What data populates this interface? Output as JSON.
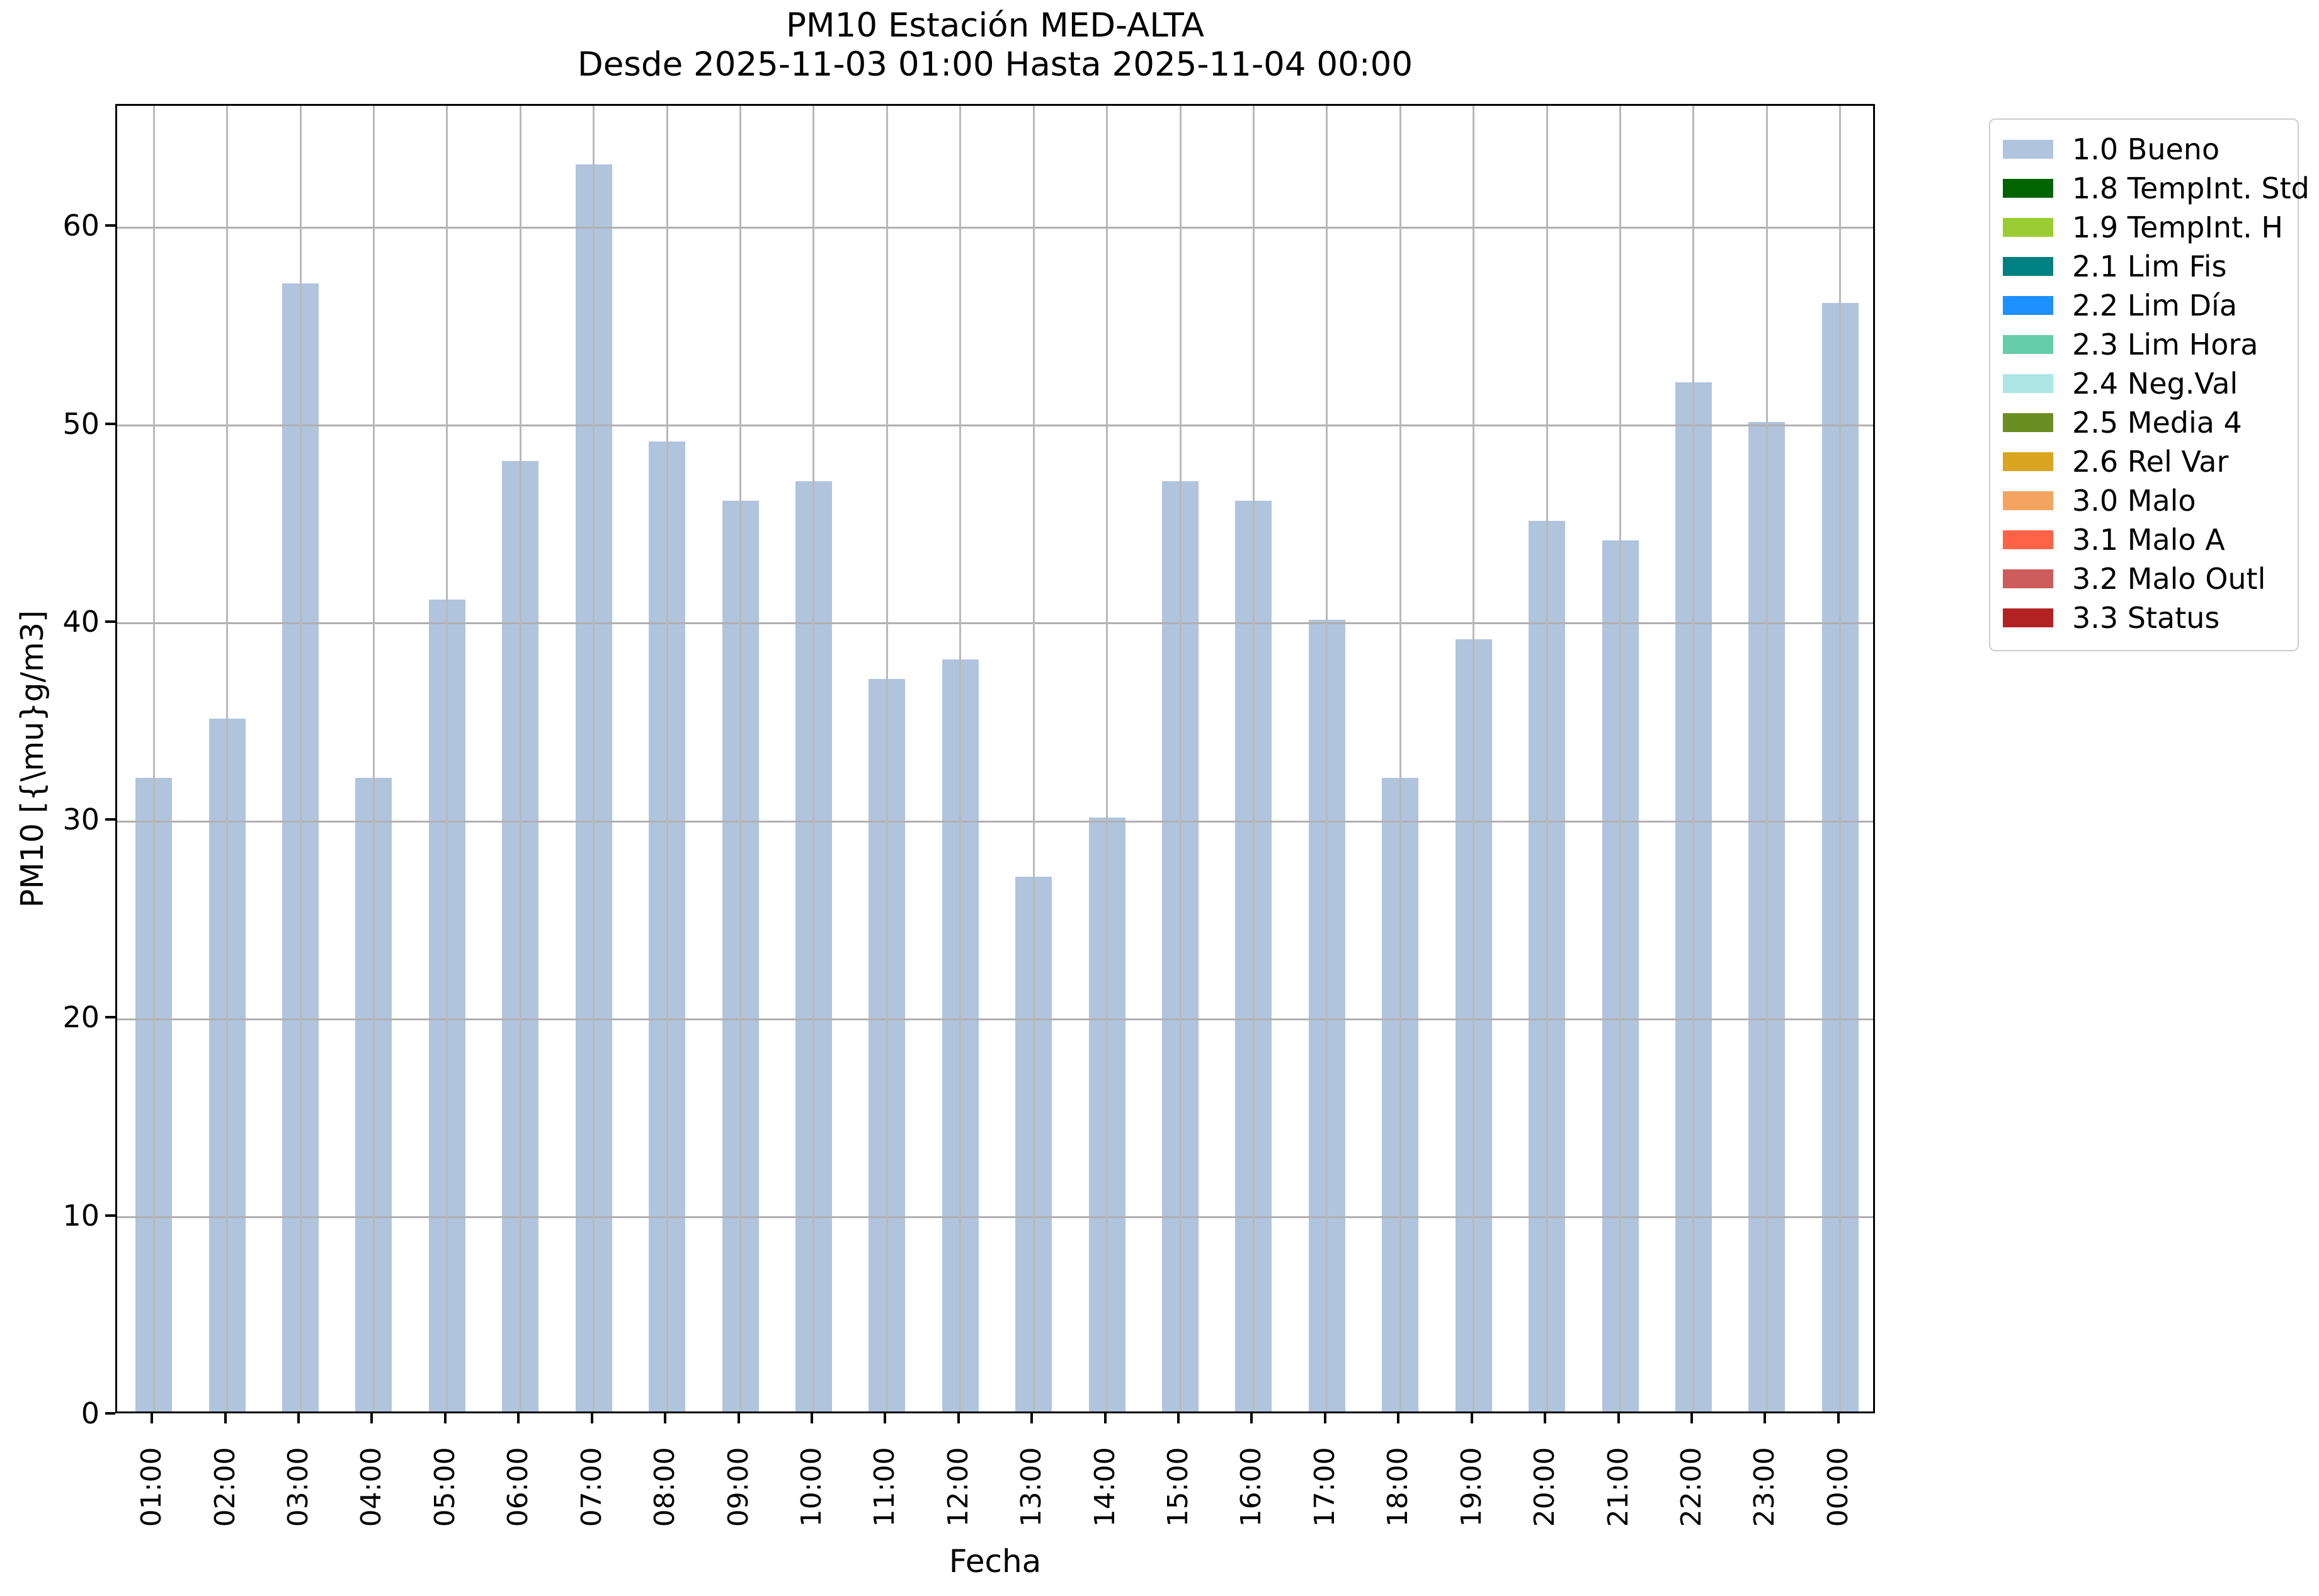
{
  "chart_data": {
    "type": "bar",
    "title": "PM10 Estación MED-ALTA",
    "subtitle": "Desde 2025-11-03 01:00 Hasta 2025-11-04 00:00",
    "xlabel": "Fecha",
    "ylabel": "PM10 [{\\mu}g/m3]",
    "categories": [
      "01:00",
      "02:00",
      "03:00",
      "04:00",
      "05:00",
      "06:00",
      "07:00",
      "08:00",
      "09:00",
      "10:00",
      "11:00",
      "12:00",
      "13:00",
      "14:00",
      "15:00",
      "16:00",
      "17:00",
      "18:00",
      "19:00",
      "20:00",
      "21:00",
      "22:00",
      "23:00",
      "00:00"
    ],
    "values": [
      32,
      35,
      57,
      32,
      41,
      48,
      63,
      49,
      46,
      47,
      37,
      38,
      27,
      30,
      47,
      46,
      40,
      32,
      39,
      45,
      44,
      52,
      50,
      56
    ],
    "bar_color": "#b0c4de",
    "yticks": [
      0,
      10,
      20,
      30,
      40,
      50,
      60
    ],
    "ylim": [
      0,
      66.15
    ],
    "grid": true,
    "legend_position": "outside upper right",
    "legend": [
      {
        "label": "1.0 Bueno",
        "color": "#b0c4de"
      },
      {
        "label": "1.8 TempInt. Std",
        "color": "#006400"
      },
      {
        "label": "1.9 TempInt. H",
        "color": "#9acd32"
      },
      {
        "label": "2.1 Lim Fis",
        "color": "#008080"
      },
      {
        "label": "2.2 Lim Día",
        "color": "#1e90ff"
      },
      {
        "label": "2.3 Lim Hora",
        "color": "#66cdaa"
      },
      {
        "label": "2.4 Neg.Val",
        "color": "#aee6e6"
      },
      {
        "label": "2.5 Media 4",
        "color": "#6b8e23"
      },
      {
        "label": "2.6 Rel Var",
        "color": "#daa520"
      },
      {
        "label": "3.0 Malo",
        "color": "#f4a460"
      },
      {
        "label": "3.1 Malo A",
        "color": "#ff6347"
      },
      {
        "label": "3.2 Malo Outl",
        "color": "#cd5c5c"
      },
      {
        "label": "3.3 Status",
        "color": "#b22222"
      }
    ]
  }
}
